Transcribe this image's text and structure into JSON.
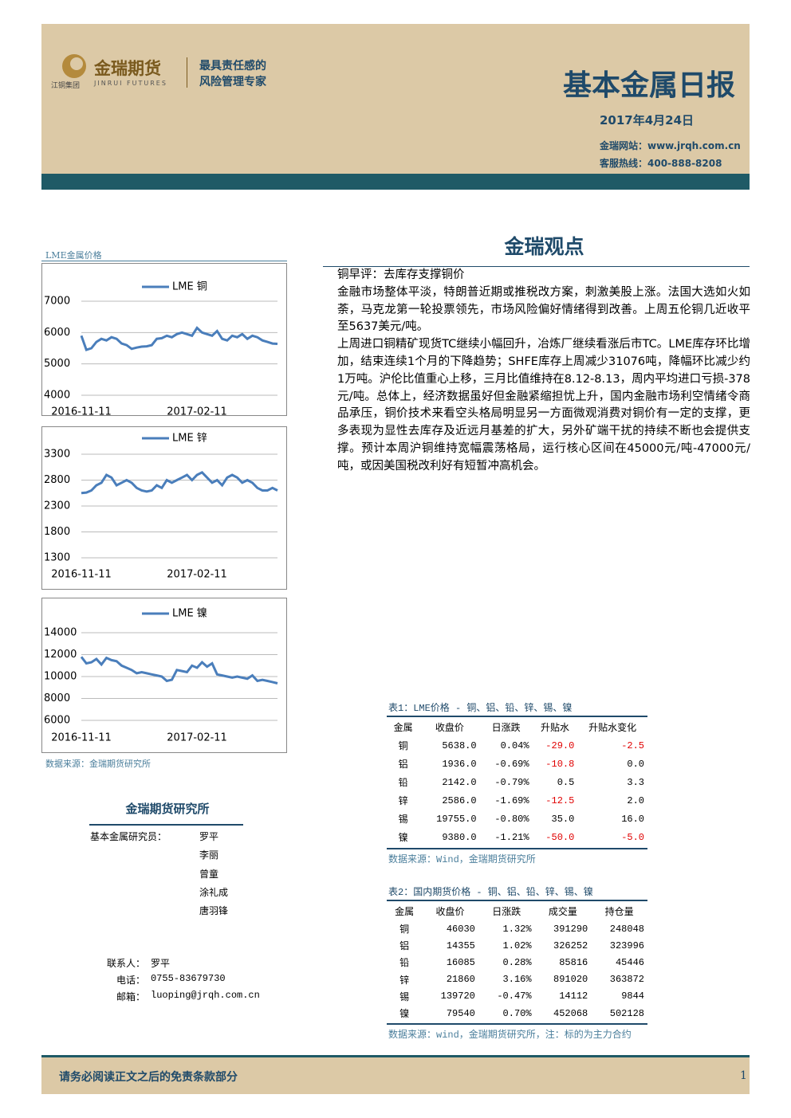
{
  "header": {
    "group": "江铜集团",
    "logo": "金瑞期货",
    "logo_en": "JINRUI FUTURES",
    "slogan": [
      "最具责任感的",
      "风险管理专家"
    ],
    "title": "基本金属日报",
    "date": "2017年4月24日",
    "website": "金瑞网站：www.jrqh.com.cn",
    "hotline": "客服热线：400-888-8208"
  },
  "sidebar_label": "LME金属价格",
  "chart_data": [
    {
      "type": "line",
      "grid": true,
      "categories": [
        "2016-11-11",
        null,
        null,
        null,
        null,
        null,
        null,
        null,
        null,
        null,
        null,
        null,
        null,
        null,
        null,
        null,
        null,
        null,
        null,
        null,
        null,
        null,
        null,
        "2017-02-11",
        null,
        null,
        null,
        null,
        null,
        null,
        null,
        null,
        null,
        null,
        null,
        null,
        null,
        null,
        null,
        null
      ],
      "series": [
        {
          "name": "LME 铜",
          "color": "#4a7ebb",
          "values": [
            5900,
            5450,
            5500,
            5700,
            5800,
            5750,
            5850,
            5800,
            5650,
            5600,
            5480,
            5520,
            5550,
            5560,
            5600,
            5800,
            5820,
            5900,
            5850,
            5950,
            6000,
            5950,
            5900,
            6150,
            6000,
            5950,
            5900,
            6050,
            5800,
            5750,
            5900,
            5850,
            5950,
            5800,
            5900,
            5850,
            5750,
            5700,
            5650,
            5640
          ]
        }
      ],
      "ylim": [
        4000,
        7000
      ],
      "yticks": [
        4000,
        5000,
        6000,
        7000
      ]
    },
    {
      "type": "line",
      "grid": true,
      "categories": [
        "2016-11-11",
        null,
        null,
        null,
        null,
        null,
        null,
        null,
        null,
        null,
        null,
        null,
        null,
        null,
        null,
        null,
        null,
        null,
        null,
        null,
        null,
        null,
        null,
        "2017-02-11",
        null,
        null,
        null,
        null,
        null,
        null,
        null,
        null,
        null,
        null,
        null,
        null,
        null,
        null,
        null,
        null
      ],
      "series": [
        {
          "name": "LME 锌",
          "color": "#4a7ebb",
          "values": [
            2550,
            2560,
            2600,
            2700,
            2750,
            2900,
            2850,
            2700,
            2750,
            2800,
            2750,
            2650,
            2600,
            2580,
            2600,
            2700,
            2650,
            2800,
            2750,
            2800,
            2850,
            2900,
            2800,
            2900,
            2950,
            2850,
            2750,
            2800,
            2700,
            2850,
            2900,
            2850,
            2750,
            2800,
            2750,
            2650,
            2600,
            2600,
            2650,
            2600
          ]
        }
      ],
      "ylim": [
        1300,
        3300
      ],
      "yticks": [
        1300,
        1800,
        2300,
        2800,
        3300
      ]
    },
    {
      "type": "line",
      "grid": true,
      "categories": [
        "2016-11-11",
        null,
        null,
        null,
        null,
        null,
        null,
        null,
        null,
        null,
        null,
        null,
        null,
        null,
        null,
        null,
        null,
        null,
        null,
        null,
        null,
        null,
        null,
        "2017-02-11",
        null,
        null,
        null,
        null,
        null,
        null,
        null,
        null,
        null,
        null,
        null,
        null,
        null,
        null,
        null,
        null
      ],
      "series": [
        {
          "name": "LME 镍",
          "color": "#4a7ebb",
          "values": [
            11800,
            11200,
            11300,
            11600,
            11100,
            11700,
            11500,
            11400,
            11000,
            10800,
            10600,
            10300,
            10400,
            10300,
            10200,
            10100,
            10000,
            9600,
            9700,
            10600,
            10500,
            10400,
            11000,
            10800,
            11300,
            10900,
            11200,
            10200,
            10100,
            10000,
            9900,
            10000,
            9900,
            9800,
            10100,
            9600,
            9700,
            9600,
            9500,
            9380
          ]
        }
      ],
      "ylim": [
        6000,
        14000
      ],
      "yticks": [
        6000,
        8000,
        10000,
        12000,
        14000
      ]
    }
  ],
  "chart_source": "数据来源：金瑞期货研究所",
  "opinion": {
    "title": "金瑞观点",
    "paragraphs": [
      "铜早评：去库存支撑铜价",
      "金融市场整体平淡，特朗普近期或推税改方案，刺激美股上涨。法国大选如火如荼，马克龙第一轮投票领先，市场风险偏好情绪得到改善。上周五伦铜几近收平至5637美元/吨。",
      "上周进口铜精矿现货TC继续小幅回升，冶炼厂继续看涨后市TC。LME库存环比增加，结束连续1个月的下降趋势；SHFE库存上周减少31076吨，降幅环比减少约1万吨。沪伦比值重心上移，三月比值维持在8.12-8.13，周内平均进口亏损-378元/吨。总体上，经济数据虽好但金融紧缩担忧上升，国内金融市场利空情绪令商品承压，铜价技术来看空头格局明显另一方面微观消费对铜价有一定的支撑，更多表现为显性去库存及近远月基差的扩大，另外矿端干扰的持续不断也会提供支撑。预计本周沪铜维持宽幅震荡格局，运行核心区间在45000元/吨-47000元/吨，或因美国税改利好有短暂冲高机会。"
    ]
  },
  "tables": [
    {
      "caption": "表1：LME价格 - 铜、铝、铅、锌、锡、镍",
      "columns": [
        "金属",
        "收盘价",
        "日涨跌",
        "升贴水",
        "升贴水变化"
      ],
      "rows": [
        [
          "铜",
          "5638.0",
          "0.04%",
          "-29.0",
          "-2.5"
        ],
        [
          "铝",
          "1936.0",
          "-0.69%",
          "-10.8",
          "0.0"
        ],
        [
          "铅",
          "2142.0",
          "-0.79%",
          "0.5",
          "3.3"
        ],
        [
          "锌",
          "2586.0",
          "-1.69%",
          "-12.5",
          "2.0"
        ],
        [
          "锡",
          "19755.0",
          "-0.80%",
          "35.0",
          "16.0"
        ],
        [
          "镍",
          "9380.0",
          "-1.21%",
          "-50.0",
          "-5.0"
        ]
      ],
      "source": "数据来源：Wind，金瑞期货研究所"
    },
    {
      "caption": "表2：国内期货价格 - 铜、铝、铅、锌、锡、镍",
      "columns": [
        "金属",
        "收盘价",
        "日涨跌",
        "成交量",
        "持仓量"
      ],
      "rows": [
        [
          "铜",
          "46030",
          "1.32%",
          "391290",
          "248048"
        ],
        [
          "铝",
          "14355",
          "1.02%",
          "326252",
          "323996"
        ],
        [
          "铅",
          "16085",
          "0.28%",
          "85816",
          "45446"
        ],
        [
          "锌",
          "21860",
          "3.16%",
          "891020",
          "363872"
        ],
        [
          "锡",
          "139720",
          "-0.47%",
          "14112",
          "9844"
        ],
        [
          "镍",
          "79540",
          "0.70%",
          "452068",
          "502128"
        ]
      ],
      "source": "数据来源：wind，金瑞期货研究所，注：标的为主力合约"
    }
  ],
  "institute": {
    "title": "金瑞期货研究所",
    "role": "基本金属研究员：",
    "names": [
      "罗平",
      "李丽",
      "曾童",
      "涂礼成",
      "唐羽锋"
    ],
    "contact": [
      [
        "联系人：",
        "罗平"
      ],
      [
        "电话：",
        "0755-83679730"
      ],
      [
        "邮箱：",
        "luoping@jrqh.com.cn"
      ]
    ]
  },
  "footer": {
    "text": "请务必阅读正文之后的免责条款部分",
    "page": "1"
  }
}
